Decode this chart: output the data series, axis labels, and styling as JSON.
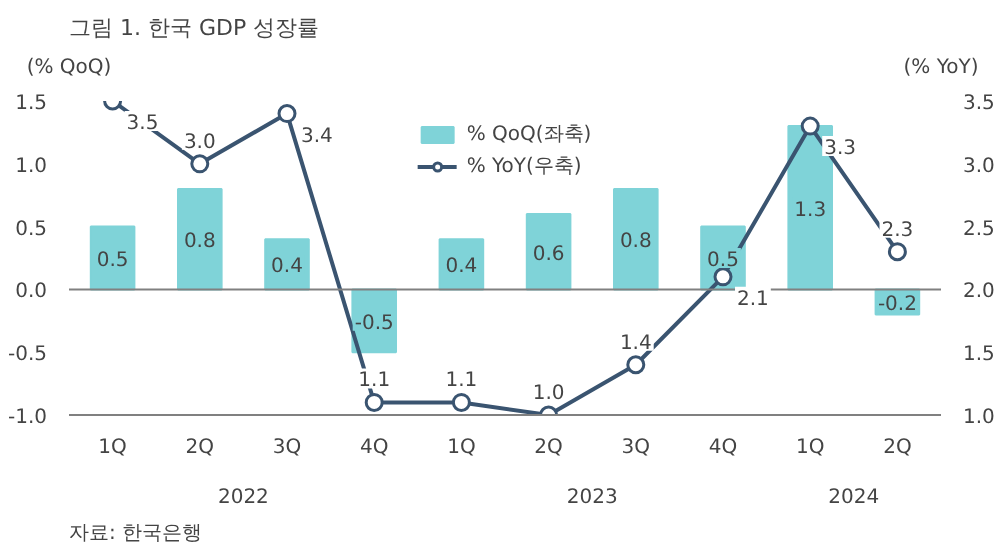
{
  "chart_data": {
    "type": "bar",
    "title": "그림 1. 한국 GDP 성장률",
    "ylabel": "(% QoQ)",
    "y2label": "(% YoY)",
    "categories": [
      "1Q",
      "2Q",
      "3Q",
      "4Q",
      "1Q",
      "2Q",
      "3Q",
      "4Q",
      "1Q",
      "2Q"
    ],
    "series": [
      {
        "name": "% QoQ(좌축)",
        "color": "#7fd3d8",
        "values": [
          0.5,
          0.8,
          0.4,
          -0.5,
          0.4,
          0.6,
          0.8,
          0.5,
          1.3,
          -0.2
        ],
        "value_labels": [
          "0.5",
          "0.8",
          "0.4",
          "-0.5",
          "0.4",
          "0.6",
          "0.8",
          "0.5",
          "1.3",
          "-0.2"
        ]
      },
      {
        "name": "% YoY(우축)",
        "type": "line",
        "axis": "y2",
        "color": "#3a5470",
        "marker": "circle",
        "values": [
          3.5,
          3.0,
          3.4,
          1.1,
          1.1,
          1.0,
          1.4,
          2.1,
          3.3,
          2.3
        ],
        "value_labels": [
          "3.5",
          "3.0",
          "3.4",
          "1.1",
          "1.1",
          "1.0",
          "1.4",
          "2.1",
          "3.3",
          "2.3"
        ]
      }
    ],
    "ylim": [
      -1.0,
      1.5
    ],
    "yticks": [
      {
        "value": -1.0,
        "label": "-1.0"
      },
      {
        "value": -0.5,
        "label": "-0.5"
      },
      {
        "value": 0,
        "label": "0.0"
      },
      {
        "value": 0.5,
        "label": "0.5"
      },
      {
        "value": 1.0,
        "label": "1.0"
      },
      {
        "value": 1.5,
        "label": "1.5"
      }
    ],
    "y2lim": [
      1.0,
      3.5
    ],
    "y2ticks": [
      {
        "value": 1.0,
        "label": "1.0"
      },
      {
        "value": 1.5,
        "label": "1.5"
      },
      {
        "value": 2.0,
        "label": "2.0"
      },
      {
        "value": 2.5,
        "label": "2.5"
      },
      {
        "value": 3.0,
        "label": "3.0"
      },
      {
        "value": 3.5,
        "label": "3.5"
      }
    ],
    "ref_lines": [
      {
        "axis": "y",
        "value": 0,
        "color": "#808080"
      }
    ],
    "grid": false,
    "legend": "top",
    "annotations": [
      "2022",
      "2023",
      "2024",
      "자료: 한국은행"
    ]
  }
}
